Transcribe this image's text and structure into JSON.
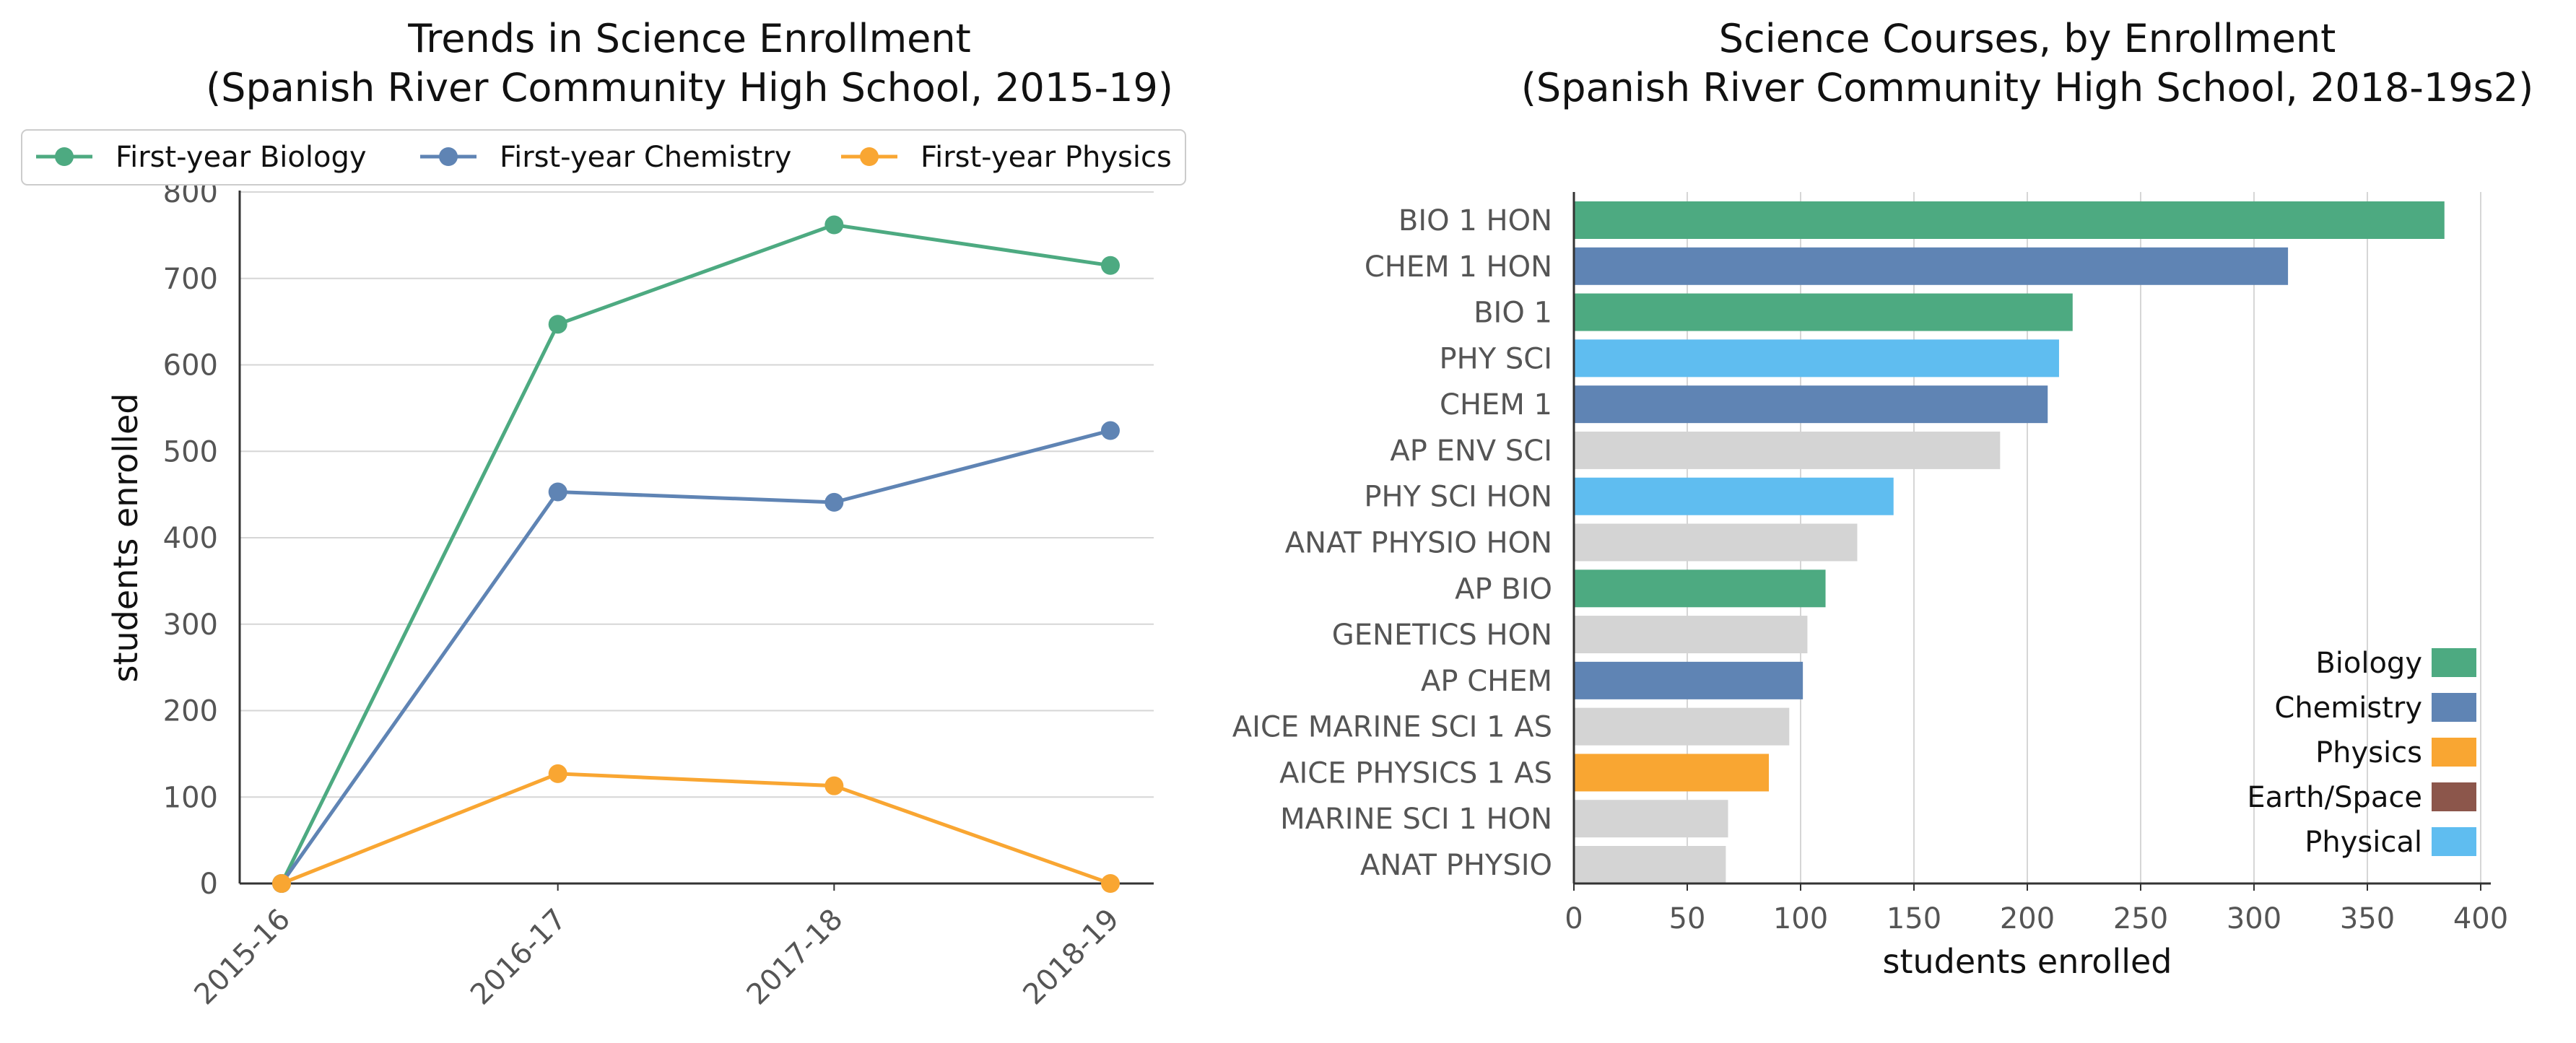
{
  "chart_data": [
    {
      "type": "line",
      "title": "Trends in Science Enrollment\n(Spanish River Community High School, 2015-19)",
      "xlabel": "",
      "ylabel": "students enrolled",
      "categories": [
        "2015-16",
        "2016-17",
        "2017-18",
        "2018-19"
      ],
      "ylim": [
        0,
        800
      ],
      "yticks": [
        0,
        100,
        200,
        300,
        400,
        500,
        600,
        700,
        800
      ],
      "grid": "horizontal",
      "legend_position": "top",
      "series": [
        {
          "name": "First-year Biology",
          "color": "#4daa81",
          "values": [
            0,
            647,
            762,
            715
          ]
        },
        {
          "name": "First-year Chemistry",
          "color": "#5f84b4",
          "values": [
            0,
            453,
            441,
            524
          ]
        },
        {
          "name": "First-year Physics",
          "color": "#f9a632",
          "values": [
            0,
            127,
            113,
            0
          ]
        }
      ]
    },
    {
      "type": "bar",
      "orientation": "horizontal",
      "title": "Science Courses, by Enrollment\n(Spanish River Community High School, 2018-19s2)",
      "xlabel": "students enrolled",
      "ylabel": "",
      "xlim": [
        0,
        400
      ],
      "xticks": [
        0,
        50,
        100,
        150,
        200,
        250,
        300,
        350,
        400
      ],
      "grid": "vertical",
      "legend_position": "lower-right",
      "categories": [
        "BIO 1 HON",
        "CHEM 1 HON",
        "BIO 1",
        "PHY SCI",
        "CHEM 1",
        "AP ENV SCI",
        "PHY SCI HON",
        "ANAT PHYSIO HON",
        "AP BIO",
        "GENETICS HON",
        "AP CHEM",
        "AICE MARINE SCI 1 AS",
        "AICE PHYSICS 1 AS",
        "MARINE SCI 1 HON",
        "ANAT PHYSIO"
      ],
      "values": [
        384,
        315,
        220,
        214,
        209,
        188,
        141,
        125,
        111,
        103,
        101,
        95,
        86,
        68,
        67
      ],
      "groups": [
        "Biology",
        "Chemistry",
        "Biology",
        "Physical",
        "Chemistry",
        "Other",
        "Physical",
        "Other",
        "Biology",
        "Other",
        "Chemistry",
        "Other",
        "Physics",
        "Other",
        "Other"
      ],
      "legend": [
        {
          "name": "Biology",
          "color": "#4daa81"
        },
        {
          "name": "Chemistry",
          "color": "#5f84b4"
        },
        {
          "name": "Physics",
          "color": "#f9a632"
        },
        {
          "name": "Earth/Space",
          "color": "#8c564b"
        },
        {
          "name": "Physical",
          "color": "#5fbdf0"
        }
      ],
      "other_color": "#d4d4d4"
    }
  ]
}
